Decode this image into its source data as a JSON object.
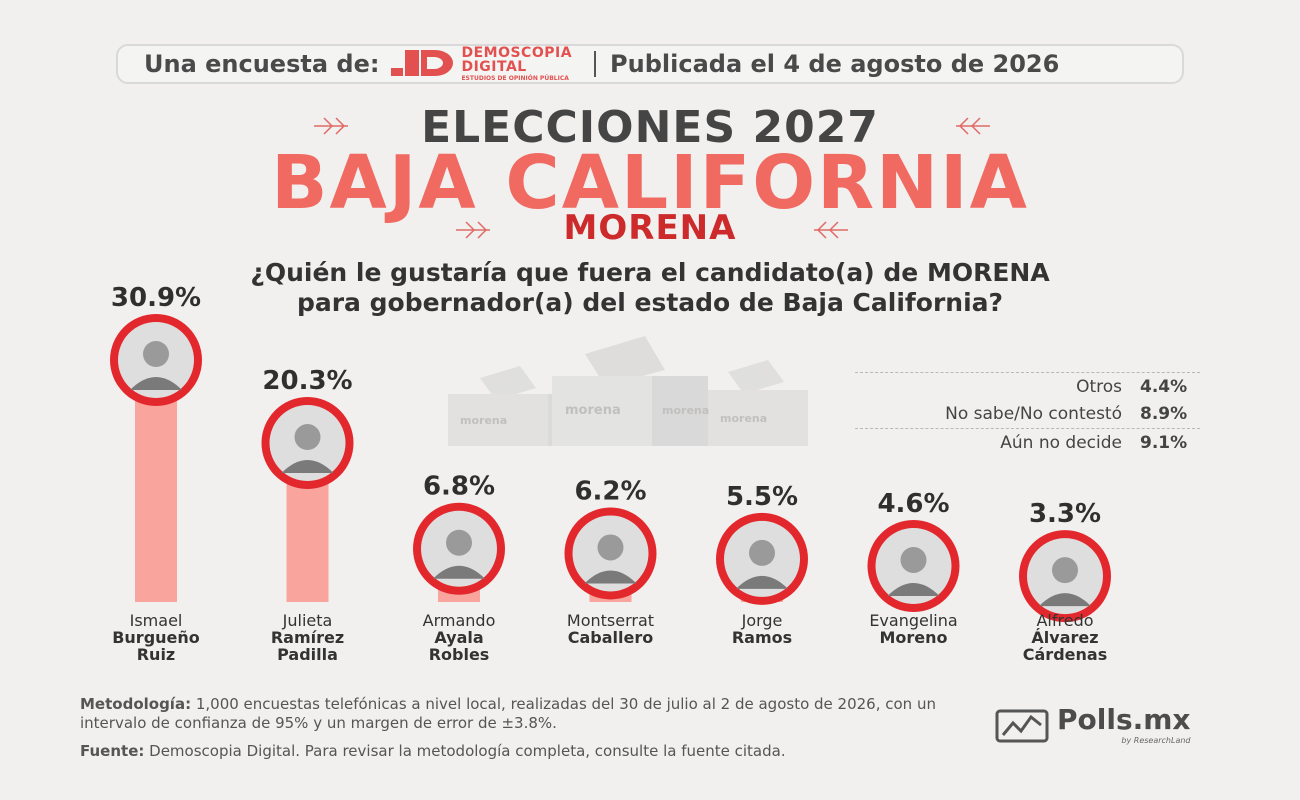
{
  "header": {
    "intro": "Una encuesta de:",
    "logo_line1": "DEMOSCOPIA",
    "logo_line2": "DIGITAL",
    "logo_tagline": "ESTUDIOS DE OPINIÓN PÚBLICA",
    "published": "Publicada el 4 de agosto de 2026"
  },
  "titles": {
    "line1": "ELECCIONES 2027",
    "line2": "BAJA CALIFORNIA",
    "line3": "MORENA"
  },
  "question": {
    "line1": "¿Quién le gustaría que fuera el candidato(a) de MORENA",
    "line2": "para gobernador(a) del estado de Baja California?"
  },
  "ballot_box_label": "morena",
  "others": [
    {
      "label": "Otros",
      "value": "4.4%"
    },
    {
      "label": "No sabe/No contestó",
      "value": "8.9%"
    },
    {
      "label": "Aún no decide",
      "value": "9.1%"
    }
  ],
  "chart_data": {
    "type": "bar",
    "categories": [
      "Ismael Burgueño Ruiz",
      "Julieta Ramírez Padilla",
      "Armando Ayala Robles",
      "Montserrat Caballero",
      "Jorge Ramos",
      "Evangelina Moreno",
      "Alfredo Álvarez Cárdenas"
    ],
    "name_lines": [
      [
        "Ismael",
        "Burgueño",
        "Ruiz"
      ],
      [
        "Julieta",
        "Ramírez",
        "Padilla"
      ],
      [
        "Armando",
        "Ayala",
        "Robles"
      ],
      [
        "Montserrat",
        "Caballero"
      ],
      [
        "Jorge",
        "Ramos"
      ],
      [
        "Evangelina",
        "Moreno"
      ],
      [
        "Alfredo",
        "Álvarez",
        "Cárdenas"
      ]
    ],
    "values": [
      30.9,
      20.3,
      6.8,
      6.2,
      5.5,
      4.6,
      3.3
    ],
    "value_labels": [
      "30.9%",
      "20.3%",
      "6.8%",
      "6.2%",
      "5.5%",
      "4.6%",
      "3.3%"
    ],
    "ylim": [
      0,
      35
    ],
    "bar_color": "#f9a49c",
    "accent": "#e3282d"
  },
  "methodology": {
    "label": "Metodología:",
    "text": " 1,000 encuestas telefónicas a nivel local, realizadas del 30 de julio al 2 de agosto de 2026, con un intervalo de confianza de 95% y un margen de error de ±3.8%."
  },
  "source": {
    "label": "Fuente:",
    "text": " Demoscopia Digital. Para revisar la metodología completa, consulte la fuente citada."
  },
  "brand": {
    "name": "Polls.mx",
    "tagline": "by ResearchLand"
  }
}
